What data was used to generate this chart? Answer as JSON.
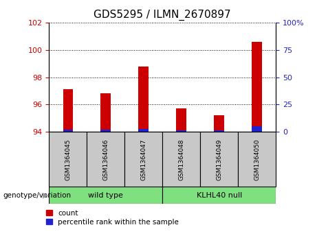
{
  "title": "GDS5295 / ILMN_2670897",
  "categories": [
    "GSM1364045",
    "GSM1364046",
    "GSM1364047",
    "GSM1364048",
    "GSM1364049",
    "GSM1364050"
  ],
  "count_values": [
    97.1,
    96.8,
    98.8,
    95.7,
    95.2,
    100.6
  ],
  "percentile_values": [
    2.0,
    2.0,
    2.5,
    1.5,
    1.5,
    5.0
  ],
  "ylim_left": [
    94,
    102
  ],
  "ylim_right": [
    0,
    100
  ],
  "yticks_left": [
    94,
    96,
    98,
    100,
    102
  ],
  "yticks_right": [
    0,
    25,
    50,
    75,
    100
  ],
  "ytick_labels_right": [
    "0",
    "25",
    "50",
    "75",
    "100%"
  ],
  "bar_bottom": 94,
  "red_color": "#cc0000",
  "blue_color": "#2222cc",
  "bg_color": "#ffffff",
  "group1_label": "wild type",
  "group2_label": "KLHL40 null",
  "group1_indices": [
    0,
    1,
    2
  ],
  "group2_indices": [
    3,
    4,
    5
  ],
  "group_bg_color": "#7FE07F",
  "sample_bg_color": "#c8c8c8",
  "genotype_label": "genotype/variation",
  "legend_count": "count",
  "legend_percentile": "percentile rank within the sample",
  "title_fontsize": 11,
  "tick_fontsize": 8,
  "label_fontsize": 8,
  "blue_bar_pct_scale": 0.16
}
